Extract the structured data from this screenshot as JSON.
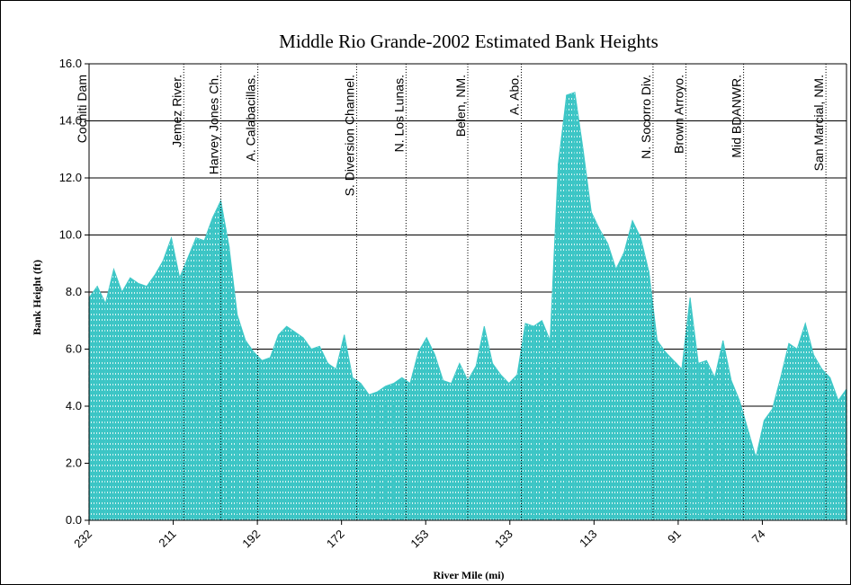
{
  "chart_data": {
    "type": "area",
    "title": "Middle Rio Grande-2002 Estimated Bank Heights",
    "xlabel": "River Mile (mi)",
    "ylabel": "Bank Height (ft)",
    "ylim": [
      0,
      16
    ],
    "yticks": [
      "0.0",
      "2.0",
      "4.0",
      "6.0",
      "8.0",
      "10.0",
      "12.0",
      "14.0",
      "16.0"
    ],
    "xticks": [
      "232",
      "211",
      "192",
      "172",
      "153",
      "133",
      "113",
      "91",
      "74"
    ],
    "grid": true,
    "series_color": "#40C8C8",
    "locations": [
      {
        "label": "Cochiti Dam",
        "mile": 232
      },
      {
        "label": "Jemez River.",
        "mile": 220.5
      },
      {
        "label": "Harvey Jones Ch.",
        "mile": 216
      },
      {
        "label": "A. Calabacillas.",
        "mile": 211.5
      },
      {
        "label": "S. Diversion Channel.",
        "mile": 199.5
      },
      {
        "label": "N. Los Lunas.",
        "mile": 193.5
      },
      {
        "label": "Belen, NM.",
        "mile": 186
      },
      {
        "label": "A. Abo.",
        "mile": 179.5
      },
      {
        "label": "N. Socorro Div.",
        "mile": 163.5
      },
      {
        "label": "Brown Arroyo.",
        "mile": 159.5
      },
      {
        "label": "Mid BDANWR.",
        "mile": 152.5
      },
      {
        "label": "San Marcial, NM.",
        "mile": 142.5
      }
    ],
    "series": [
      {
        "x": [
          232,
          231,
          230,
          229,
          228,
          227,
          226,
          225,
          224,
          223,
          222,
          221,
          220,
          219,
          218,
          217,
          216,
          215,
          214,
          213,
          212,
          211,
          210,
          209,
          208,
          207,
          206,
          205,
          204,
          203,
          202,
          201,
          200,
          199,
          198,
          197,
          196,
          195,
          194,
          193,
          192,
          191,
          190,
          189,
          188,
          187,
          186,
          185,
          184,
          183,
          182,
          181,
          180,
          179,
          178,
          177,
          176,
          175,
          174,
          173,
          172,
          171,
          170,
          169,
          168,
          167,
          166,
          165,
          164,
          163,
          162,
          161,
          160,
          159,
          158,
          157,
          156,
          155,
          154,
          153,
          152,
          151,
          150,
          149,
          148,
          147,
          146,
          145,
          144,
          143,
          142,
          141,
          140
        ],
        "y": [
          7.8,
          8.2,
          7.6,
          8.8,
          8.0,
          8.5,
          8.3,
          8.2,
          8.6,
          9.1,
          9.9,
          8.5,
          9.2,
          9.9,
          9.8,
          10.6,
          11.2,
          9.6,
          7.2,
          6.3,
          5.9,
          5.6,
          5.7,
          6.5,
          6.8,
          6.6,
          6.4,
          6.0,
          6.1,
          5.5,
          5.3,
          6.5,
          5.0,
          4.8,
          4.4,
          4.5,
          4.7,
          4.8,
          5.0,
          4.8,
          5.9,
          6.4,
          5.8,
          4.9,
          4.8,
          5.5,
          4.9,
          5.4,
          6.8,
          5.5,
          5.1,
          4.8,
          5.1,
          6.9,
          6.8,
          7.0,
          6.3,
          12.5,
          14.9,
          15.0,
          13.0,
          10.8,
          10.2,
          9.7,
          8.8,
          9.4,
          10.5,
          9.9,
          8.7,
          6.3,
          5.9,
          5.6,
          5.3,
          7.8,
          5.5,
          5.6,
          5.0,
          6.3,
          4.9,
          4.2,
          3.2,
          2.2,
          3.5,
          3.9,
          5.0,
          6.2,
          6.0,
          6.9,
          5.8,
          5.3,
          5.0,
          4.2,
          4.6
        ]
      }
    ]
  }
}
